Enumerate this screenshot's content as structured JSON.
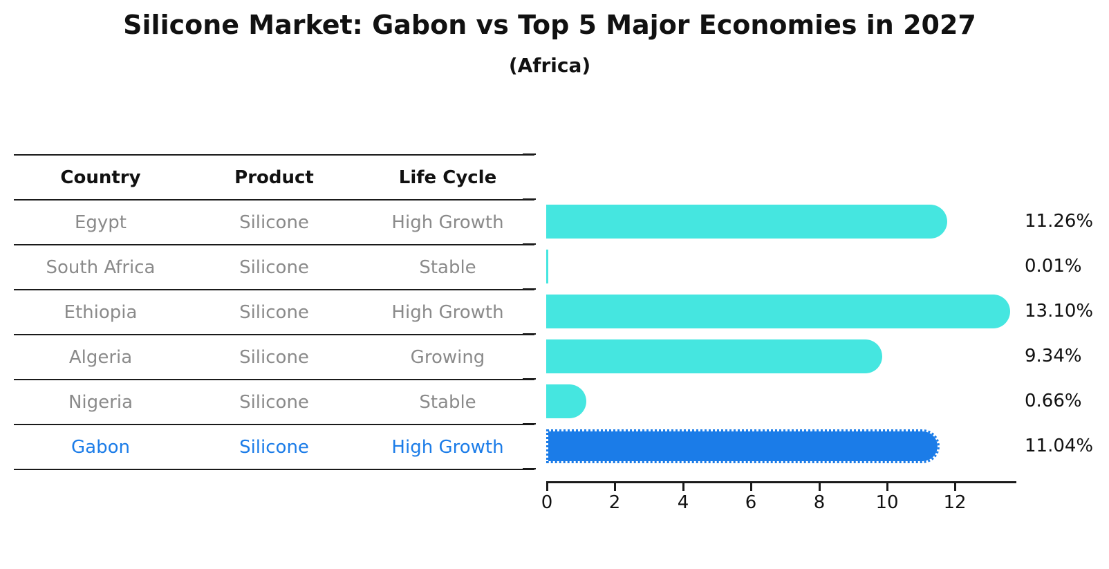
{
  "header": {
    "title": "Silicone Market: Gabon vs Top 5 Major Economies in 2027",
    "subtitle": "(Africa)"
  },
  "table": {
    "columns": [
      "Country",
      "Product",
      "Life Cycle"
    ],
    "rows": [
      {
        "country": "Egypt",
        "product": "Silicone",
        "life_cycle": "High Growth",
        "highlight": false
      },
      {
        "country": "South Africa",
        "product": "Silicone",
        "life_cycle": "Stable",
        "highlight": false
      },
      {
        "country": "Ethiopia",
        "product": "Silicone",
        "life_cycle": "High Growth",
        "highlight": false
      },
      {
        "country": "Algeria",
        "product": "Silicone",
        "life_cycle": "Growing",
        "highlight": false
      },
      {
        "country": "Nigeria",
        "product": "Silicone",
        "life_cycle": "Stable",
        "highlight": false
      },
      {
        "country": "Gabon",
        "product": "Silicone",
        "life_cycle": "High Growth",
        "highlight": true
      }
    ]
  },
  "chart_data": {
    "type": "bar",
    "orientation": "horizontal",
    "title": "Silicone Market: Gabon vs Top 5 Major Economies in 2027",
    "subtitle": "(Africa)",
    "categories": [
      "Egypt",
      "South Africa",
      "Ethiopia",
      "Algeria",
      "Nigeria",
      "Gabon"
    ],
    "values": [
      11.26,
      0.01,
      13.1,
      9.34,
      0.66,
      11.04
    ],
    "value_labels": [
      "11.26%",
      "0.01%",
      "13.10%",
      "9.34%",
      "0.66%",
      "11.04%"
    ],
    "xlabel": "",
    "ylabel": "",
    "xlim": [
      0,
      13.8
    ],
    "x_ticks": [
      "0",
      "2",
      "4",
      "6",
      "8",
      "10",
      "12"
    ],
    "grid": false,
    "legend": "none",
    "highlight_index": 5,
    "colors": {
      "bar": "#45e6e0",
      "highlight_bar": "#1b7ce8",
      "highlight_text": "#1b7ce8",
      "muted_text": "#8a8a8a",
      "text": "#111111"
    }
  }
}
